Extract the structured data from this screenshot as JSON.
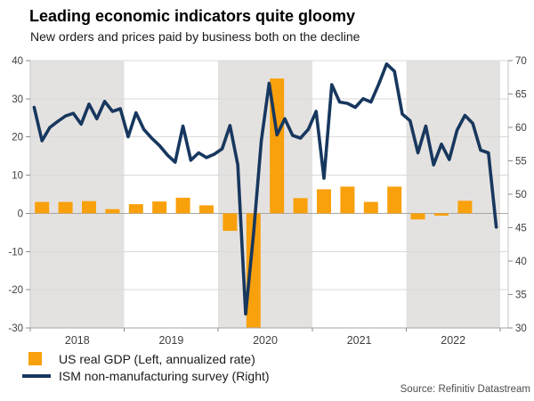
{
  "header": {
    "title": "Leading economic indicators quite gloomy",
    "subtitle": "New orders and prices paid by business both on the decline"
  },
  "legend": {
    "items": [
      {
        "label": "US real GDP (Left, annualized rate)",
        "marker": "square",
        "color": "#f9a00d"
      },
      {
        "label": "ISM non-manufacturing survey (Right)",
        "marker": "line",
        "color": "#17375e"
      }
    ]
  },
  "source": {
    "text": "Source: Refinitiv Datastream"
  },
  "chart_data": {
    "type": "combo",
    "title": "Leading economic indicators quite gloomy",
    "subtitle": "New orders and prices paid by business both on the decline",
    "x_axis": {
      "start": 2018,
      "year_labels": [
        "2018",
        "2019",
        "2020",
        "2021",
        "2022"
      ],
      "shaded_years": [
        2018,
        2020,
        2022
      ],
      "shading_color": "#e4e2e0"
    },
    "left_axis": {
      "ticks": [
        40,
        30,
        20,
        10,
        0,
        -10,
        -20,
        -30
      ],
      "range": [
        -30,
        40
      ]
    },
    "right_axis": {
      "ticks": [
        70,
        65,
        60,
        55,
        50,
        45,
        40,
        35,
        30
      ],
      "range": [
        30,
        70
      ]
    },
    "grid": {
      "line_color": "#d9d9d9",
      "zero_line_color": "#a6a6a6",
      "axis_color": "#a6a6a6",
      "tick_color": "#8c8c8c",
      "label_color": "#404040"
    },
    "series": [
      {
        "name": "US real GDP (Left, annualized rate)",
        "type": "bar",
        "axis": "left",
        "color": "#f9a00d",
        "frequency": "quarterly",
        "start": "2018-Q1",
        "values": [
          3.0,
          3.0,
          3.2,
          1.1,
          2.4,
          3.1,
          4.1,
          2.1,
          -4.6,
          -29.9,
          35.3,
          4.0,
          6.3,
          7.0,
          3.0,
          7.0,
          -1.6,
          -0.6,
          3.3
        ]
      },
      {
        "name": "ISM non-manufacturing survey (Right)",
        "type": "line",
        "axis": "right",
        "color": "#17375e",
        "frequency": "monthly",
        "start": "2018-01",
        "values": [
          63.0,
          58.0,
          60.0,
          60.9,
          61.7,
          62.1,
          60.5,
          63.5,
          61.3,
          63.9,
          62.4,
          62.8,
          58.6,
          62.2,
          59.7,
          58.4,
          57.3,
          55.9,
          54.8,
          60.2,
          55.1,
          56.2,
          55.5,
          56.0,
          56.8,
          60.3,
          54.4,
          32.1,
          44.0,
          58.0,
          66.6,
          58.9,
          61.3,
          58.8,
          58.4,
          59.7,
          62.4,
          52.4,
          66.4,
          63.8,
          63.6,
          63.0,
          64.3,
          63.8,
          66.5,
          69.5,
          68.4,
          62.0,
          61.0,
          56.2,
          60.2,
          54.4,
          57.5,
          55.2,
          59.6,
          61.8,
          60.6,
          56.6,
          56.2,
          45.1
        ]
      }
    ]
  }
}
